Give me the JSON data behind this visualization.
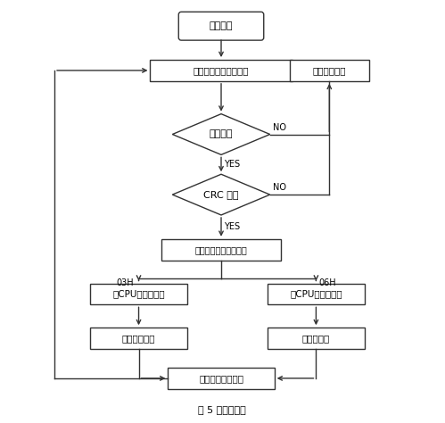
{
  "title": "图 5 程序流程图",
  "bg_color": "#ffffff",
  "line_color": "#333333",
  "box_color": "#ffffff",
  "text_color": "#000000",
  "open_serial_label": "打开串口",
  "recv_msg_label": "接收信息并获取首字符",
  "clear_recv_label": "清接收缓冲区",
  "is_station_label": "是本站否",
  "crc_label": "CRC 校验",
  "func_label": "读起始地址判断功能码",
  "read_cpu_label": "与CPU进行读通信",
  "write_cpu_label": "与CPU进行写通信",
  "pack_label": "信息打包上传",
  "raw_label": "原信息上传",
  "clear_send_label": "清接收发送缓冲区",
  "yes": "YES",
  "no": "NO",
  "label_03h": "03H",
  "label_06h": "06H"
}
